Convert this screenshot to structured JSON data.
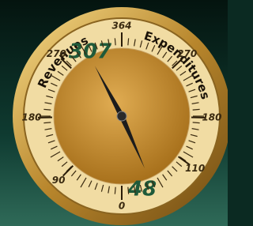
{
  "gauge": {
    "range": [
      0,
      364
    ],
    "left": {
      "label": "Revenues",
      "value": 307,
      "ticks": [
        90,
        180,
        270
      ]
    },
    "right": {
      "label": "Expenditures",
      "value": 48,
      "ticks": [
        110,
        180,
        270
      ]
    }
  }
}
